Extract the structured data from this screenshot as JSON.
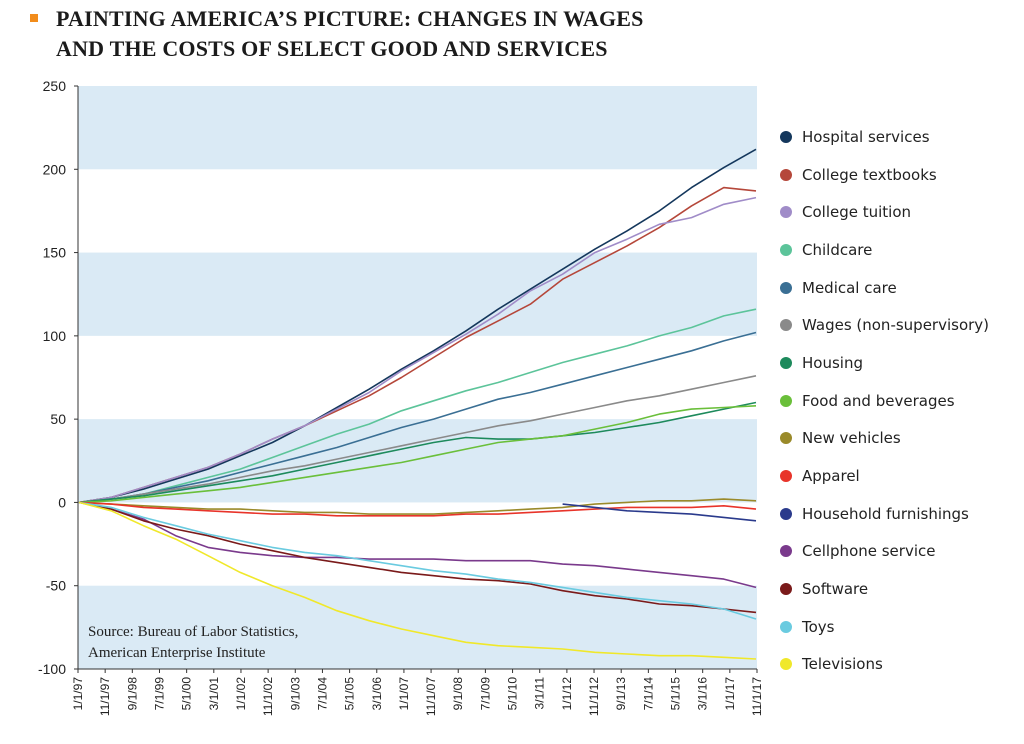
{
  "header": {
    "title_line1": "PAINTING AMERICA’S PICTURE: CHANGES IN WAGES",
    "title_line2": "AND THE COSTS OF SELECT GOOD AND SERVICES",
    "bullet_color": "#f28c1b"
  },
  "source": {
    "line1": "Source: Bureau of Labor Statistics,",
    "line2": "American Enterprise Institute"
  },
  "chart_data": {
    "type": "line",
    "title": "PAINTING AMERICA’S PICTURE: CHANGES IN WAGES AND THE COSTS OF SELECT GOOD AND SERVICES",
    "xlabel": "",
    "ylabel": "",
    "ylim": [
      -100,
      250
    ],
    "yticks": [
      -100,
      -50,
      0,
      50,
      100,
      150,
      200,
      250
    ],
    "grid": "alternating horizontal bands",
    "band_color": "#daeaf5",
    "legend_position": "right",
    "x_tick_labels": [
      "1/1/97",
      "11/1/97",
      "9/1/98",
      "7/1/99",
      "5/1/00",
      "3/1/01",
      "1/1/02",
      "11/1/02",
      "9/1/03",
      "7/1/04",
      "5/1/05",
      "3/1/06",
      "1/1/07",
      "11/1/07",
      "9/1/08",
      "7/1/09",
      "5/1/10",
      "3/1/11",
      "1/1/12",
      "11/1/12",
      "9/1/13",
      "7/1/14",
      "5/1/15",
      "3/1/16",
      "1/1/17",
      "11/1/17"
    ],
    "series": [
      {
        "name": "Hospital services",
        "color": "#14375c",
        "values": [
          0,
          3,
          8,
          14,
          20,
          28,
          36,
          46,
          57,
          68,
          80,
          91,
          103,
          116,
          128,
          140,
          152,
          163,
          175,
          189,
          201,
          212
        ]
      },
      {
        "name": "College textbooks",
        "color": "#b5473a",
        "values": [
          0,
          3,
          9,
          15,
          21,
          29,
          38,
          46,
          55,
          64,
          75,
          87,
          99,
          109,
          119,
          134,
          144,
          154,
          165,
          178,
          189,
          187
        ]
      },
      {
        "name": "College tuition",
        "color": "#a08cc8",
        "values": [
          0,
          3,
          9,
          15,
          21,
          29,
          38,
          46,
          56,
          66,
          79,
          90,
          101,
          113,
          127,
          137,
          150,
          158,
          167,
          171,
          179,
          183
        ]
      },
      {
        "name": "Childcare",
        "color": "#5cc49a",
        "values": [
          0,
          2,
          5,
          10,
          15,
          20,
          27,
          34,
          41,
          47,
          55,
          61,
          67,
          72,
          78,
          84,
          89,
          94,
          100,
          105,
          112,
          116
        ]
      },
      {
        "name": "Medical care",
        "color": "#3a6f94",
        "values": [
          0,
          2,
          5,
          9,
          13,
          18,
          23,
          28,
          33,
          39,
          45,
          50,
          56,
          62,
          66,
          71,
          76,
          81,
          86,
          91,
          97,
          102
        ]
      },
      {
        "name": "Wages (non-supervisory)",
        "color": "#8a8a8a",
        "values": [
          0,
          2,
          5,
          8,
          11,
          15,
          19,
          22,
          26,
          30,
          34,
          38,
          42,
          46,
          49,
          53,
          57,
          61,
          64,
          68,
          72,
          76
        ]
      },
      {
        "name": "Housing",
        "color": "#1d8a5c",
        "values": [
          0,
          2,
          4,
          7,
          10,
          13,
          16,
          20,
          24,
          28,
          32,
          36,
          39,
          38,
          38,
          40,
          42,
          45,
          48,
          52,
          56,
          60
        ]
      },
      {
        "name": "Food and beverages",
        "color": "#6abf3a",
        "values": [
          0,
          1,
          3,
          5,
          7,
          9,
          12,
          15,
          18,
          21,
          24,
          28,
          32,
          36,
          38,
          40,
          44,
          48,
          53,
          56,
          57,
          58
        ]
      },
      {
        "name": "New vehicles",
        "color": "#9a8a2a",
        "values": [
          0,
          -1,
          -2,
          -3,
          -4,
          -4,
          -5,
          -6,
          -6,
          -7,
          -7,
          -7,
          -6,
          -5,
          -4,
          -3,
          -1,
          0,
          1,
          1,
          2,
          1
        ]
      },
      {
        "name": "Apparel",
        "color": "#e8342a",
        "values": [
          0,
          -1,
          -3,
          -4,
          -5,
          -6,
          -7,
          -7,
          -8,
          -8,
          -8,
          -8,
          -7,
          -7,
          -6,
          -5,
          -4,
          -3,
          -3,
          -3,
          -2,
          -4
        ]
      },
      {
        "name": "Household furnishings",
        "color": "#2a3a8c",
        "values": [
          null,
          null,
          null,
          null,
          null,
          null,
          null,
          null,
          null,
          null,
          null,
          null,
          null,
          null,
          null,
          -1,
          -3,
          -5,
          -6,
          -7,
          -9,
          -11
        ]
      },
      {
        "name": "Cellphone service",
        "color": "#7a3a8c",
        "values": [
          0,
          -4,
          -10,
          -20,
          -27,
          -30,
          -32,
          -33,
          -33,
          -34,
          -34,
          -34,
          -35,
          -35,
          -35,
          -37,
          -38,
          -40,
          -42,
          -44,
          -46,
          -51
        ]
      },
      {
        "name": "Software",
        "color": "#7a1a1a",
        "values": [
          0,
          -4,
          -11,
          -16,
          -20,
          -25,
          -29,
          -33,
          -36,
          -39,
          -42,
          -44,
          -46,
          -47,
          -49,
          -53,
          -56,
          -58,
          -61,
          -62,
          -64,
          -66
        ]
      },
      {
        "name": "Toys",
        "color": "#6acbe0",
        "values": [
          0,
          -3,
          -9,
          -14,
          -19,
          -23,
          -27,
          -30,
          -32,
          -35,
          -38,
          -41,
          -43,
          -46,
          -48,
          -51,
          -54,
          -57,
          -59,
          -61,
          -64,
          -70
        ]
      },
      {
        "name": "Televisions",
        "color": "#f0e82a",
        "values": [
          0,
          -5,
          -14,
          -22,
          -32,
          -42,
          -50,
          -57,
          -65,
          -71,
          -76,
          -80,
          -84,
          -86,
          -87,
          -88,
          -90,
          -91,
          -92,
          -92,
          -93,
          -94
        ]
      }
    ]
  }
}
